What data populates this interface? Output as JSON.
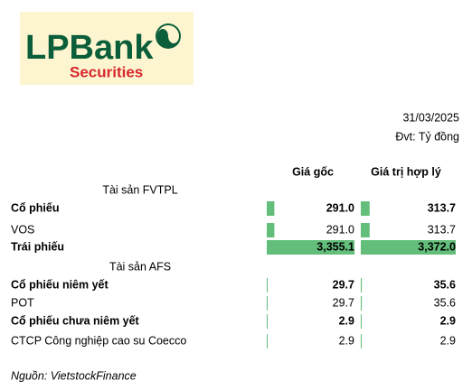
{
  "logo": {
    "brand": "LPBank",
    "sub": "Securities"
  },
  "date": "31/03/2025",
  "unit": "Đvt: Tỷ đồng",
  "columns": [
    "Giá gốc",
    "Giá trị hợp lý"
  ],
  "bar_color": "#63be7b",
  "rows": [
    {
      "label": "Tài sản FVTPL",
      "section": true
    },
    {
      "label": "Cổ phiếu",
      "bold": true,
      "cells": [
        {
          "value": 291.0,
          "label": "291.0"
        },
        {
          "value": 313.7,
          "label": "313.7"
        }
      ]
    },
    {
      "label": "VOS",
      "cells": [
        {
          "value": 291.0,
          "label": "291.0"
        },
        {
          "value": 313.7,
          "label": "313.7"
        }
      ]
    },
    {
      "label": "Trái phiếu",
      "bold": true,
      "cells": [
        {
          "value": 3355.1,
          "label": "3,355.1"
        },
        {
          "value": 3372.0,
          "label": "3,372.0"
        }
      ]
    },
    {
      "label": "Tài sản AFS",
      "section": true
    },
    {
      "label": "Cổ phiếu niêm yết",
      "bold": true,
      "cells": [
        {
          "value": 29.7,
          "label": "29.7"
        },
        {
          "value": 35.6,
          "label": "35.6"
        }
      ]
    },
    {
      "label": "POT",
      "cells": [
        {
          "value": 29.7,
          "label": "29.7"
        },
        {
          "value": 35.6,
          "label": "35.6"
        }
      ]
    },
    {
      "label": "Cổ phiếu chưa niêm yết",
      "bold": true,
      "cells": [
        {
          "value": 2.9,
          "label": "2.9"
        },
        {
          "value": 2.9,
          "label": "2.9"
        }
      ]
    },
    {
      "label": "CTCP Công nghiệp cao su Coecco",
      "cells": [
        {
          "value": 2.9,
          "label": "2.9"
        },
        {
          "value": 2.9,
          "label": "2.9"
        }
      ]
    }
  ],
  "source": "Nguồn: VietstockFinance"
}
